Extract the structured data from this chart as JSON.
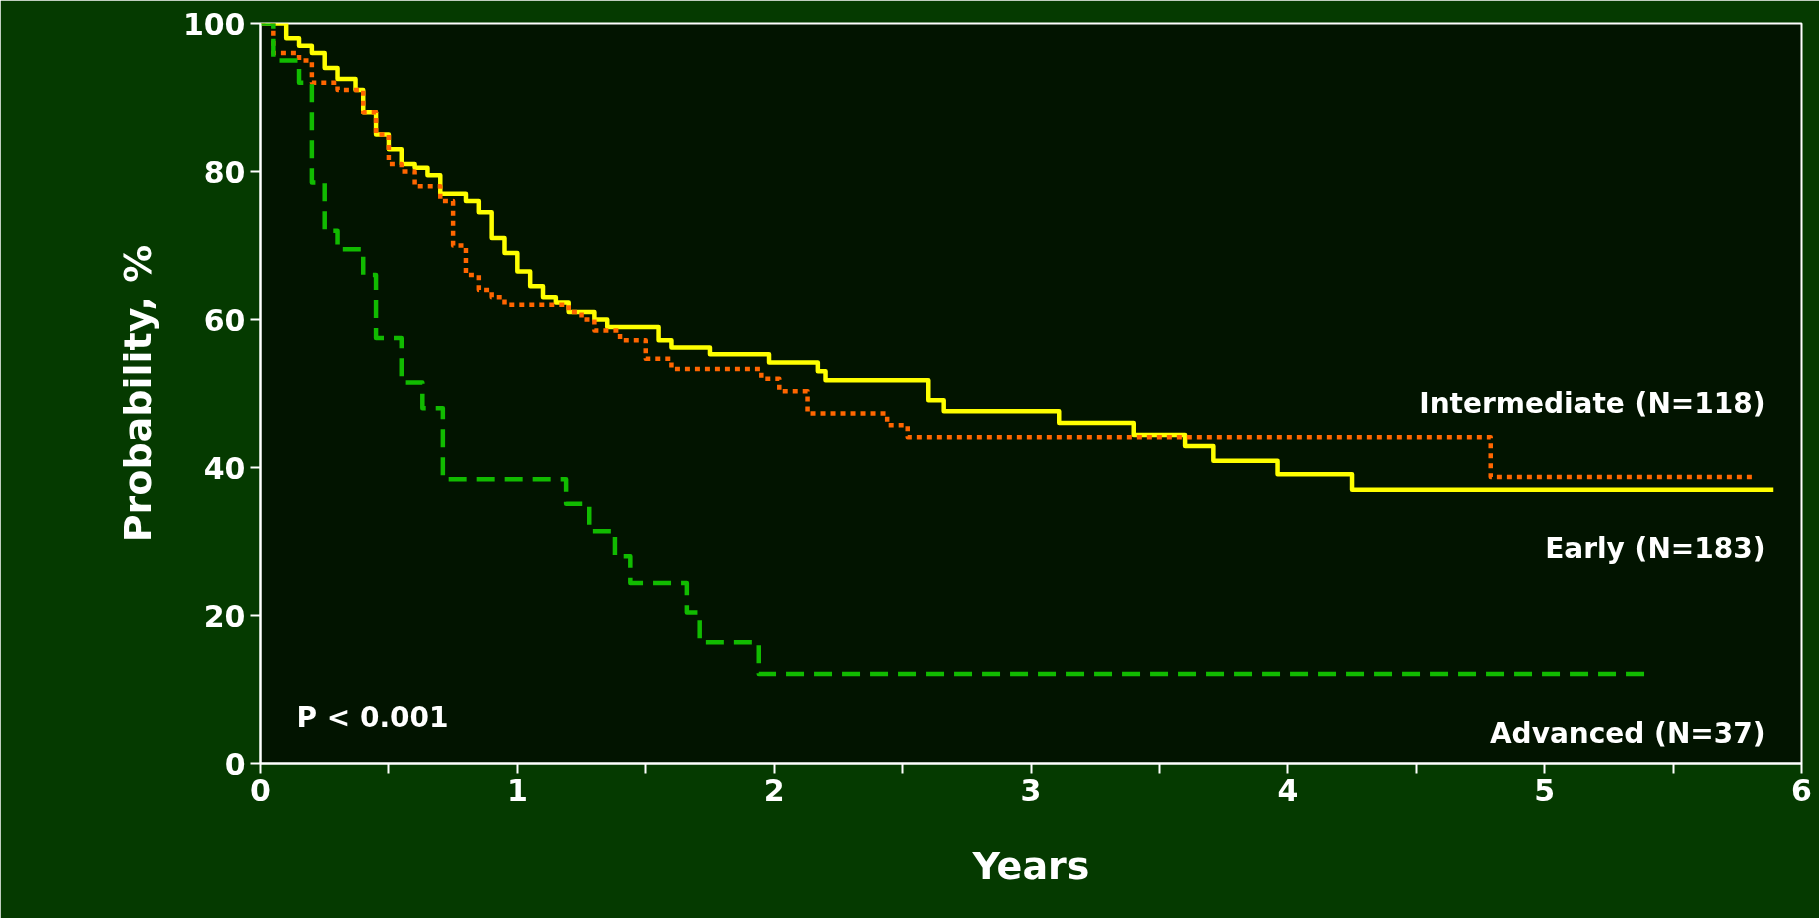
{
  "chart_data": {
    "type": "step",
    "xlabel": "Years",
    "ylabel": "Probability, %",
    "xlim": [
      0,
      6
    ],
    "ylim": [
      0,
      100
    ],
    "xticks": [
      0,
      {
        "value": 0.5,
        "label": null
      },
      1,
      {
        "value": 1.5,
        "label": null
      },
      2,
      {
        "value": 2.5,
        "label": null
      },
      3,
      {
        "value": 3.5,
        "label": null
      },
      4,
      {
        "value": 4.5,
        "label": null
      },
      5,
      {
        "value": 5.5,
        "label": null
      },
      6
    ],
    "yticks": [
      0,
      20,
      40,
      60,
      80,
      100
    ],
    "grid": false,
    "annotations": [
      "P < 0.001"
    ],
    "series": [
      {
        "name": "Early (N=183)",
        "color": "#ffff00",
        "line_style": "solid",
        "x": [
          0,
          0.1,
          0.15,
          0.2,
          0.25,
          0.3,
          0.37,
          0.4,
          0.45,
          0.5,
          0.55,
          0.6,
          0.65,
          0.7,
          0.8,
          0.85,
          0.9,
          0.95,
          1.0,
          1.05,
          1.1,
          1.15,
          1.2,
          1.3,
          1.35,
          1.55,
          1.6,
          1.75,
          1.98,
          2.17,
          2.2,
          2.6,
          2.66,
          3.11,
          3.4,
          3.6,
          3.71,
          3.96,
          4.25,
          5.89
        ],
        "values": [
          100,
          98,
          97,
          96,
          94,
          92.5,
          91,
          88,
          85,
          83,
          81,
          80.5,
          79.5,
          77,
          76,
          74.5,
          71,
          69,
          66.5,
          64.5,
          63,
          62.3,
          61,
          60,
          59,
          57.2,
          56.2,
          55.3,
          54.2,
          53,
          51.8,
          49.1,
          47.6,
          46,
          44.4,
          42.9,
          40.9,
          39.1,
          37,
          37
        ]
      },
      {
        "name": "Intermediate (N=118)",
        "color": "#ff6600",
        "line_style": "dotted",
        "x": [
          0,
          0.05,
          0.15,
          0.2,
          0.3,
          0.4,
          0.45,
          0.5,
          0.55,
          0.6,
          0.7,
          0.75,
          0.8,
          0.85,
          0.9,
          0.95,
          1.2,
          1.25,
          1.3,
          1.4,
          1.5,
          1.6,
          1.95,
          2.02,
          2.13,
          2.44,
          2.52,
          4.79,
          5.81
        ],
        "values": [
          100,
          96,
          95,
          92,
          91,
          88,
          85,
          81,
          80,
          78,
          76,
          70,
          66,
          64,
          63,
          62,
          61,
          60,
          58.5,
          57.2,
          54.7,
          53.3,
          52,
          50.3,
          47.3,
          45.7,
          44.1,
          38.7,
          38.7
        ]
      },
      {
        "name": "Advanced (N=37)",
        "color": "#11bb00",
        "line_style": "dashed",
        "x": [
          0,
          0.05,
          0.15,
          0.2,
          0.25,
          0.3,
          0.4,
          0.45,
          0.55,
          0.63,
          0.71,
          1.19,
          1.28,
          1.38,
          1.44,
          1.66,
          1.71,
          1.94,
          5.4
        ],
        "values": [
          100,
          95,
          92,
          78.5,
          72,
          69.5,
          66,
          57.5,
          51.5,
          48,
          38.4,
          35.1,
          31.4,
          28,
          24.4,
          20.4,
          16.4,
          12.1,
          12.1
        ]
      }
    ]
  }
}
